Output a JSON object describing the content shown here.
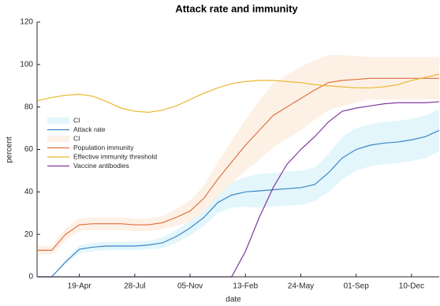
{
  "chart_data": {
    "type": "line",
    "title": "Attack rate and immunity",
    "x_label": "date",
    "y_label": "percent",
    "x": [
      null,
      null,
      null,
      "19-Apr",
      null,
      null,
      null,
      "28-Jul",
      null,
      null,
      null,
      "05-Nov",
      null,
      null,
      null,
      "13-Feb",
      null,
      null,
      null,
      "24-May",
      null,
      null,
      null,
      "01-Sep",
      null,
      null,
      null,
      "10-Dec",
      null,
      null
    ],
    "ylim": [
      0,
      120
    ],
    "yticks": [
      0,
      20,
      40,
      60,
      80,
      100,
      120
    ],
    "legend": "left",
    "series": [
      {
        "name": "CI",
        "color": "#e3f6fc",
        "lower": [
          0,
          0,
          6,
          11,
          12,
          12.5,
          12.5,
          12.5,
          13,
          13.5,
          16,
          19.5,
          24,
          30,
          32.5,
          33,
          32.5,
          33,
          33.5,
          34,
          35.5,
          40,
          46,
          50,
          52,
          53,
          53.5,
          54.5,
          56,
          59
        ],
        "upper": [
          0,
          0,
          8,
          15,
          16,
          16.5,
          16.5,
          16.5,
          17,
          18.5,
          22,
          26.5,
          32,
          40,
          44.5,
          47,
          48.5,
          49,
          49.5,
          50,
          51.5,
          58,
          66,
          70,
          72,
          73,
          73.5,
          74.5,
          76,
          79
        ]
      },
      {
        "name": "Attack rate",
        "color": "#3d86c6",
        "values": [
          0,
          0,
          7,
          13,
          14,
          14.5,
          14.5,
          14.5,
          15,
          16,
          19,
          23,
          28,
          35,
          38.5,
          40,
          40.5,
          41,
          41.5,
          42,
          43.5,
          49,
          56,
          60,
          62,
          63,
          63.5,
          64.5,
          66,
          69
        ]
      },
      {
        "name": "CI",
        "color": "#fdf1e6",
        "lower": [
          10.5,
          10.5,
          17,
          21.5,
          22,
          22,
          22,
          21.5,
          21.5,
          22.5,
          24,
          26,
          31,
          38,
          44,
          50,
          55,
          61,
          65,
          69,
          74,
          78.5,
          80.5,
          82,
          83.5,
          83.5,
          83.5,
          83.5,
          83.5,
          83.5
        ],
        "upper": [
          14.5,
          14.5,
          23,
          27.5,
          28,
          28,
          28,
          27.5,
          27.5,
          28.5,
          32,
          36,
          43,
          54,
          64,
          74,
          83,
          91,
          95,
          99,
          102,
          104.5,
          104.5,
          104,
          103.5,
          103.5,
          103.5,
          103.5,
          103.5,
          103.5
        ]
      },
      {
        "name": "Population immunity",
        "color": "#e07040",
        "values": [
          12.5,
          12.5,
          20,
          24.5,
          25,
          25,
          25,
          24.5,
          24.5,
          25.5,
          28,
          31,
          37,
          46,
          54,
          62,
          69,
          76,
          80,
          84,
          88,
          91.5,
          92.5,
          93,
          93.5,
          93.5,
          93.5,
          93.5,
          93.5,
          93.5
        ]
      },
      {
        "name": "Effective immunity threshold",
        "color": "#ebb830",
        "values": [
          83,
          84.5,
          85.5,
          86,
          85,
          82.5,
          79.5,
          78,
          77.5,
          78.5,
          80.5,
          83.5,
          86.5,
          89,
          91,
          92,
          92.5,
          92.5,
          92,
          91.5,
          90.5,
          90,
          89.5,
          89,
          89,
          89.5,
          90.5,
          92.5,
          94,
          95.5
        ]
      },
      {
        "name": "Vaccine antibodies",
        "color": "#7e3a9c",
        "values": [
          0,
          0,
          0,
          0,
          0,
          0,
          0,
          0,
          0,
          0,
          0,
          0,
          0,
          0,
          0,
          12,
          28,
          42,
          53,
          60,
          66,
          73,
          78,
          79.5,
          80.5,
          81.5,
          82,
          82,
          82,
          82.5
        ]
      }
    ]
  }
}
